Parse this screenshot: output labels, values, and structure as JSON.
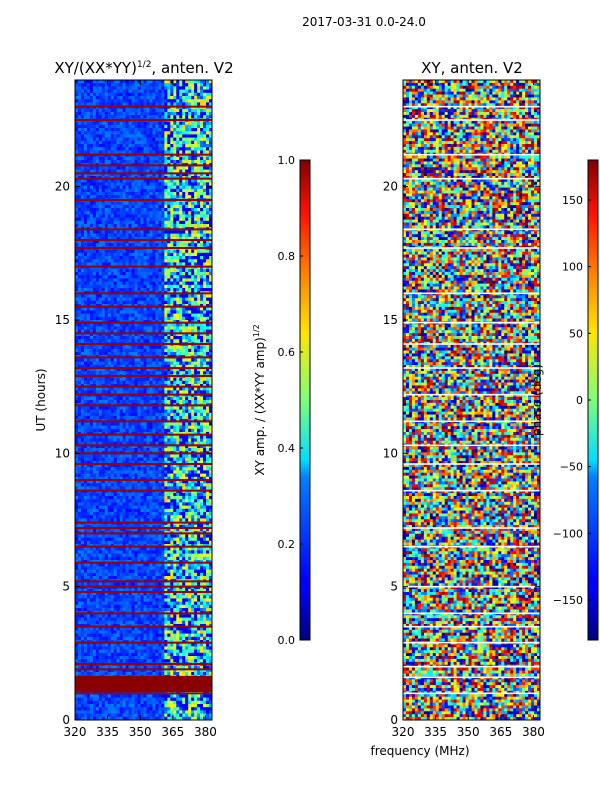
{
  "figure": {
    "suptitle": "2017-03-31 0.0-24.0",
    "xlabel_shared": "frequency (MHz)"
  },
  "chart_data": [
    {
      "type": "heatmap",
      "title_main": "XY/(XX*YY)",
      "title_sup": "1/2",
      "title_rest": ", anten. V2",
      "ylabel": "UT (hours)",
      "xlim": [
        320,
        383
      ],
      "ylim": [
        0,
        24
      ],
      "xticks": [
        320,
        335,
        350,
        365,
        380
      ],
      "yticks": [
        0,
        5,
        10,
        15,
        20
      ],
      "colorbar": {
        "label_main": "XY amp. / (XX*YY amp)",
        "label_sup": "1/2",
        "range": [
          0.0,
          1.0
        ],
        "ticks": [
          "0.0",
          "0.2",
          "0.4",
          "0.6",
          "0.8",
          "1.0"
        ],
        "tick_values": [
          0.0,
          0.2,
          0.4,
          0.6,
          0.8,
          1.0
        ],
        "colormap": "jet"
      }
    },
    {
      "type": "heatmap",
      "title": "XY, anten. V2",
      "xlim": [
        320,
        383
      ],
      "ylim": [
        0,
        24
      ],
      "xticks": [
        320,
        335,
        350,
        365,
        380
      ],
      "yticks": [
        0,
        5,
        10,
        15,
        20
      ],
      "colorbar": {
        "label": "phase (deg)",
        "range": [
          -180,
          180
        ],
        "ticks": [
          "−150",
          "−100",
          "−50",
          "0",
          "50",
          "100",
          "150"
        ],
        "tick_values": [
          -150,
          -100,
          -50,
          0,
          50,
          100,
          150
        ],
        "colormap": "jet"
      }
    }
  ]
}
